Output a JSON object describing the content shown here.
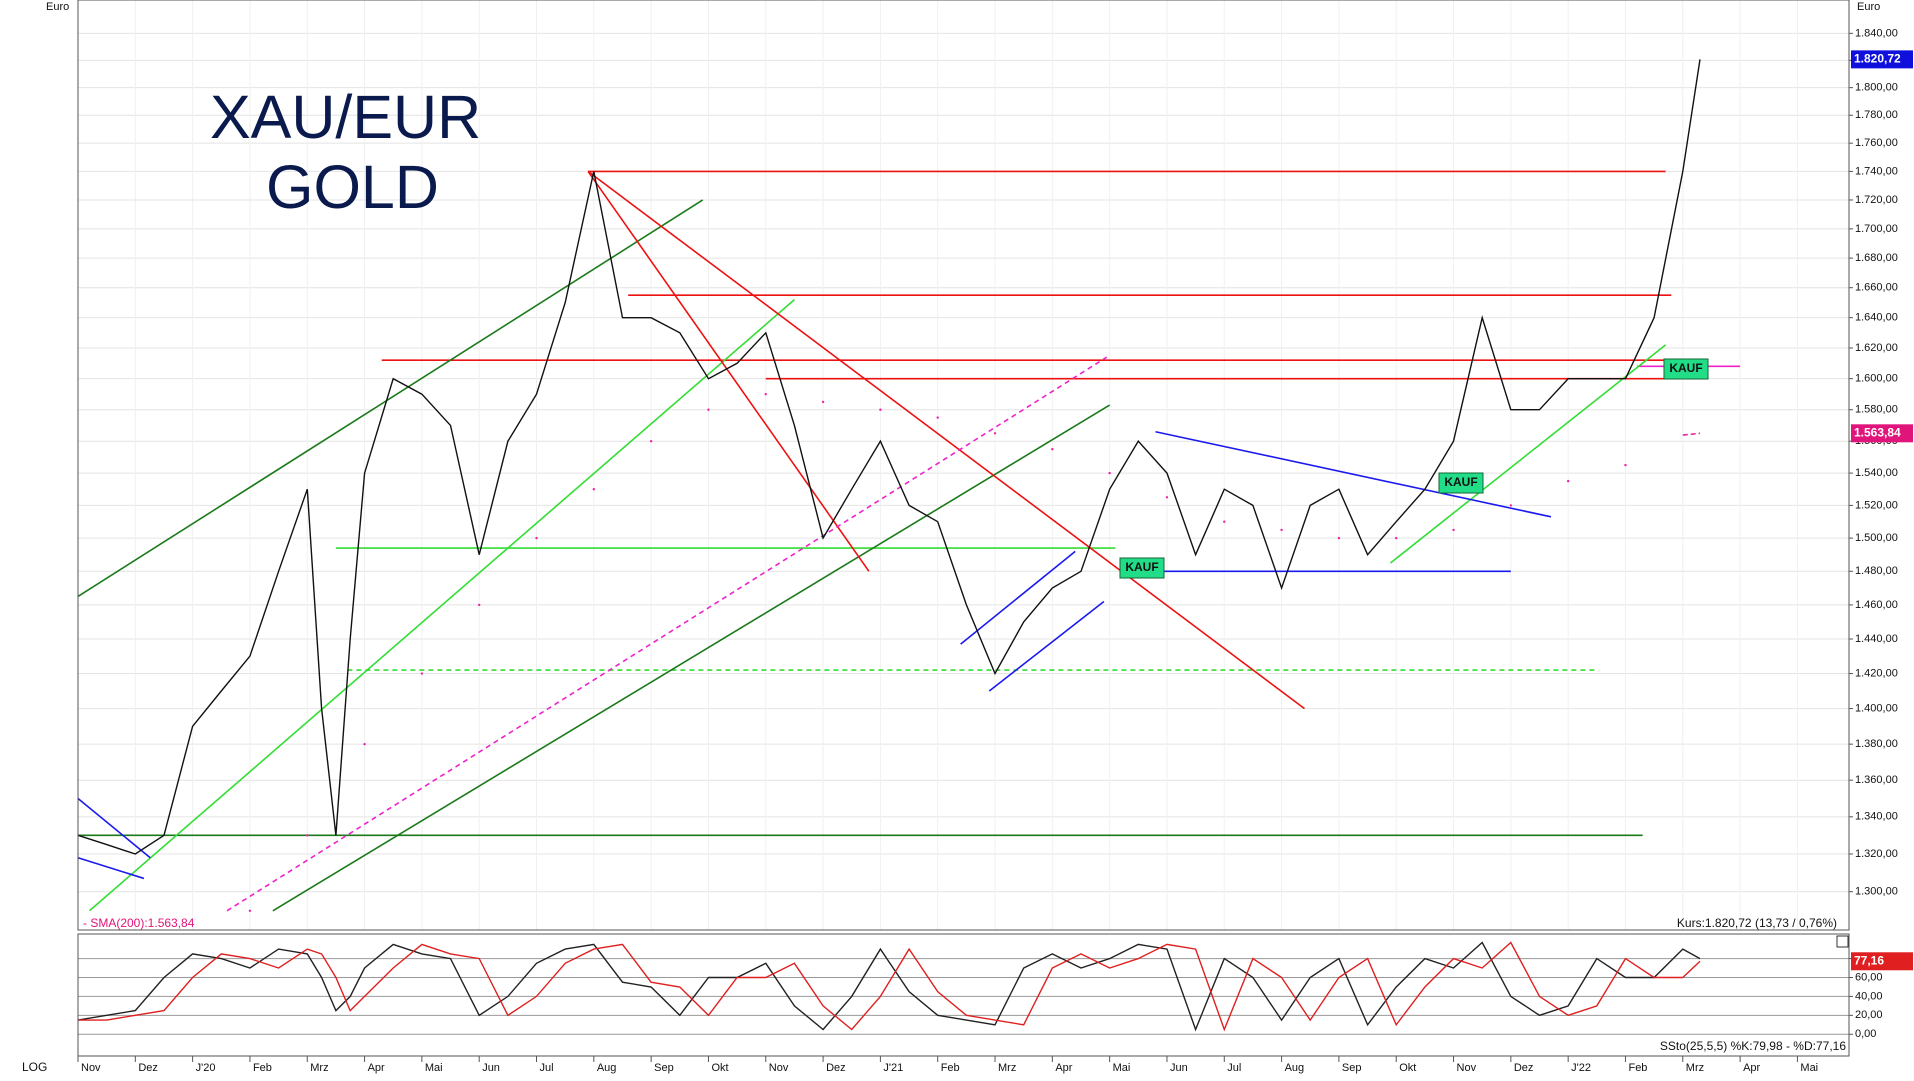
{
  "chart_data": [
    {
      "type": "line",
      "title": "XAU/EUR",
      "subtitle": "GOLD",
      "axis_unit": "Euro",
      "log_scale": true,
      "grid": true,
      "scale_label": "LOG",
      "x": [
        0,
        0.5,
        1,
        1.5,
        2,
        2.5,
        3,
        3.5,
        4,
        4.25,
        4.5,
        4.75,
        5,
        5.5,
        6,
        6.5,
        7,
        7.5,
        8,
        8.5,
        9,
        9.5,
        10,
        10.5,
        11,
        11.5,
        12,
        12.5,
        13,
        13.5,
        14,
        14.5,
        15,
        15.5,
        16,
        16.5,
        17,
        17.5,
        18,
        18.5,
        19,
        19.5,
        20,
        20.5,
        21,
        21.5,
        22,
        22.5,
        23,
        23.5,
        24,
        24.5,
        25,
        25.5,
        26,
        26.5,
        27,
        27.5,
        28,
        28.3
      ],
      "xlim": [
        0,
        30.9
      ],
      "xticks": [
        {
          "value": 0,
          "label": "Nov"
        },
        {
          "value": 1,
          "label": "Dez"
        },
        {
          "value": 2,
          "label": "J'20"
        },
        {
          "value": 3,
          "label": "Feb"
        },
        {
          "value": 4,
          "label": "Mrz"
        },
        {
          "value": 5,
          "label": "Apr"
        },
        {
          "value": 6,
          "label": "Mai"
        },
        {
          "value": 7,
          "label": "Jun"
        },
        {
          "value": 8,
          "label": "Jul"
        },
        {
          "value": 9,
          "label": "Aug"
        },
        {
          "value": 10,
          "label": "Sep"
        },
        {
          "value": 11,
          "label": "Okt"
        },
        {
          "value": 12,
          "label": "Nov"
        },
        {
          "value": 13,
          "label": "Dez"
        },
        {
          "value": 14,
          "label": "J'21"
        },
        {
          "value": 15,
          "label": "Feb"
        },
        {
          "value": 16,
          "label": "Mrz"
        },
        {
          "value": 17,
          "label": "Apr"
        },
        {
          "value": 18,
          "label": "Mai"
        },
        {
          "value": 19,
          "label": "Jun"
        },
        {
          "value": 20,
          "label": "Jul"
        },
        {
          "value": 21,
          "label": "Aug"
        },
        {
          "value": 22,
          "label": "Sep"
        },
        {
          "value": 23,
          "label": "Okt"
        },
        {
          "value": 24,
          "label": "Nov"
        },
        {
          "value": 25,
          "label": "Dez"
        },
        {
          "value": 26,
          "label": "J'22"
        },
        {
          "value": 27,
          "label": "Feb"
        },
        {
          "value": 28,
          "label": "Mrz"
        },
        {
          "value": 29,
          "label": "Apr"
        },
        {
          "value": 30,
          "label": "Mai"
        }
      ],
      "ylim": [
        1280,
        1865
      ],
      "yticks": [
        {
          "value": 1300,
          "label": "1.300,00"
        },
        {
          "value": 1320,
          "label": "1.320,00"
        },
        {
          "value": 1340,
          "label": "1.340,00"
        },
        {
          "value": 1360,
          "label": "1.360,00"
        },
        {
          "value": 1380,
          "label": "1.380,00"
        },
        {
          "value": 1400,
          "label": "1.400,00"
        },
        {
          "value": 1420,
          "label": "1.420,00"
        },
        {
          "value": 1440,
          "label": "1.440,00"
        },
        {
          "value": 1460,
          "label": "1.460,00"
        },
        {
          "value": 1480,
          "label": "1.480,00"
        },
        {
          "value": 1500,
          "label": "1.500,00"
        },
        {
          "value": 1520,
          "label": "1.520,00"
        },
        {
          "value": 1540,
          "label": "1.540,00"
        },
        {
          "value": 1560,
          "label": "1.560,00"
        },
        {
          "value": 1580,
          "label": "1.580,00"
        },
        {
          "value": 1600,
          "label": "1.600,00"
        },
        {
          "value": 1620,
          "label": "1.620,00"
        },
        {
          "value": 1640,
          "label": "1.640,00"
        },
        {
          "value": 1660,
          "label": "1.660,00"
        },
        {
          "value": 1680,
          "label": "1.680,00"
        },
        {
          "value": 1700,
          "label": "1.700,00"
        },
        {
          "value": 1720,
          "label": "1.720,00"
        },
        {
          "value": 1740,
          "label": "1.740,00"
        },
        {
          "value": 1760,
          "label": "1.760,00"
        },
        {
          "value": 1780,
          "label": "1.780,00"
        },
        {
          "value": 1800,
          "label": "1.800,00"
        },
        {
          "value": 1820,
          "label": "1.820,00"
        },
        {
          "value": 1840,
          "label": "1.840,00"
        }
      ],
      "series": [
        {
          "color": "#111111",
          "values": [
            1330,
            1325,
            1320,
            1330,
            1390,
            1410,
            1430,
            1480,
            1530,
            1400,
            1330,
            1440,
            1540,
            1600,
            1590,
            1570,
            1490,
            1560,
            1590,
            1650,
            1740,
            1640,
            1640,
            1630,
            1600,
            1610,
            1630,
            1570,
            1500,
            1530,
            1560,
            1520,
            1510,
            1460,
            1420,
            1450,
            1470,
            1480,
            1530,
            1560,
            1540,
            1490,
            1530,
            1520,
            1470,
            1520,
            1530,
            1490,
            1510,
            1530,
            1560,
            1640,
            1580,
            1580,
            1600,
            1600,
            1600,
            1640,
            1740,
            1820.72
          ],
          "last_label": "1.820,72",
          "label_color": "#1010dd"
        },
        {
          "color": "#ee22aa",
          "dashed": true,
          "values": [
            null,
            null,
            null,
            null,
            null,
            null,
            1290,
            null,
            1330,
            null,
            null,
            null,
            1380,
            null,
            1420,
            null,
            1460,
            null,
            1500,
            null,
            1530,
            null,
            1560,
            null,
            1580,
            null,
            1590,
            null,
            1585,
            null,
            1580,
            null,
            1575,
            null,
            1565,
            null,
            1555,
            null,
            1540,
            null,
            1525,
            null,
            1510,
            null,
            1505,
            null,
            1500,
            null,
            1500,
            null,
            1505,
            null,
            1520,
            null,
            1535,
            null,
            1545,
            null,
            1563.84,
            1565
          ],
          "last_label": "1.563,84",
          "label_color": "#e0147a",
          "legend_text": "- SMA(200):1.563,84"
        }
      ],
      "lines": [
        {
          "color": "#ee1111",
          "x": [
            8.9,
            27.7
          ],
          "y": [
            1740,
            1740
          ]
        },
        {
          "color": "#ee1111",
          "x": [
            9.6,
            27.8
          ],
          "y": [
            1655,
            1655
          ]
        },
        {
          "color": "#ee1111",
          "x": [
            5.3,
            27.8
          ],
          "y": [
            1612,
            1612
          ]
        },
        {
          "color": "#ee1111",
          "x": [
            12,
            27.8
          ],
          "y": [
            1600,
            1600
          ]
        },
        {
          "color": "#33dd33",
          "x": [
            4.5,
            18.1
          ],
          "y": [
            1494,
            1494
          ]
        },
        {
          "color": "#33dd33",
          "dashed": true,
          "x": [
            4.7,
            26.5
          ],
          "y": [
            1422,
            1422
          ]
        },
        {
          "color": "#1a7a1a",
          "x": [
            0,
            27.3
          ],
          "y": [
            1330,
            1330
          ]
        },
        {
          "color": "#1a1aee",
          "x": [
            18.4,
            25
          ],
          "y": [
            1480,
            1480
          ]
        },
        {
          "color": "#ee22cc",
          "x": [
            27.2,
            29
          ],
          "y": [
            1608,
            1608
          ]
        },
        {
          "color": "#1a7a1a",
          "x": [
            0,
            10.9
          ],
          "y": [
            1465,
            1720
          ]
        },
        {
          "color": "#1a7a1a",
          "x": [
            3.4,
            18
          ],
          "y": [
            1290,
            1583
          ]
        },
        {
          "color": "#33dd33",
          "x": [
            0.2,
            12.5
          ],
          "y": [
            1290,
            1652
          ]
        },
        {
          "color": "#33dd33",
          "x": [
            22.9,
            27.7
          ],
          "y": [
            1485,
            1622
          ]
        },
        {
          "color": "#ee1111",
          "x": [
            8.9,
            21.4
          ],
          "y": [
            1740,
            1400
          ]
        },
        {
          "color": "#ee1111",
          "x": [
            8.9,
            13.8
          ],
          "y": [
            1740,
            1480
          ]
        },
        {
          "color": "#1a1aee",
          "x": [
            18.8,
            25.7
          ],
          "y": [
            1566,
            1513
          ]
        },
        {
          "color": "#1a1aee",
          "x": [
            15.4,
            17.4
          ],
          "y": [
            1437,
            1492
          ]
        },
        {
          "color": "#1a1aee",
          "x": [
            15.9,
            17.9
          ],
          "y": [
            1410,
            1462
          ]
        },
        {
          "color": "#ee22cc",
          "dashed": true,
          "x": [
            2.6,
            17.95
          ],
          "y": [
            1290,
            1614
          ]
        },
        {
          "color": "#1a1aee",
          "x": [
            0,
            1.26
          ],
          "y": [
            1350,
            1318
          ]
        },
        {
          "color": "#1a1aee",
          "x": [
            0,
            1.15
          ],
          "y": [
            1318,
            1307
          ]
        }
      ],
      "annotations": [
        "KAUF",
        "KAUF",
        "KAUF"
      ],
      "quote": "Kurs:1.820,72 (13,73 / 0,76%)"
    },
    {
      "type": "line",
      "grid": true,
      "x": [
        0,
        0.5,
        1,
        1.5,
        2,
        2.5,
        3,
        3.5,
        4,
        4.25,
        4.5,
        4.75,
        5,
        5.5,
        6,
        6.5,
        7,
        7.5,
        8,
        8.5,
        9,
        9.5,
        10,
        10.5,
        11,
        11.5,
        12,
        12.5,
        13,
        13.5,
        14,
        14.5,
        15,
        15.5,
        16,
        16.5,
        17,
        17.5,
        18,
        18.5,
        19,
        19.5,
        20,
        20.5,
        21,
        21.5,
        22,
        22.5,
        23,
        23.5,
        24,
        24.5,
        25,
        25.5,
        26,
        26.5,
        27,
        27.5,
        28,
        28.3
      ],
      "xlim": [
        0,
        30.9
      ],
      "ylim": [
        -23,
        106
      ],
      "yticks": [
        {
          "value": 0,
          "label": "0,00"
        },
        {
          "value": 20,
          "label": "20,00"
        },
        {
          "value": 40,
          "label": "40,00"
        },
        {
          "value": 60,
          "label": "60,00"
        },
        {
          "value": 80,
          "label": "80,00"
        }
      ],
      "series": [
        {
          "color": "#222222",
          "values": [
            15,
            20,
            25,
            60,
            85,
            80,
            70,
            90,
            85,
            60,
            25,
            40,
            70,
            95,
            85,
            80,
            20,
            40,
            75,
            90,
            95,
            55,
            50,
            20,
            60,
            60,
            75,
            30,
            5,
            40,
            90,
            45,
            20,
            15,
            10,
            70,
            85,
            70,
            80,
            95,
            90,
            5,
            80,
            60,
            15,
            60,
            80,
            10,
            50,
            80,
            70,
            97,
            40,
            20,
            30,
            80,
            60,
            60,
            90,
            79.98
          ]
        },
        {
          "color": "#e02020",
          "values": [
            15,
            15,
            20,
            25,
            60,
            85,
            80,
            70,
            90,
            85,
            60,
            25,
            40,
            70,
            95,
            85,
            80,
            20,
            40,
            75,
            90,
            95,
            55,
            50,
            20,
            60,
            60,
            75,
            30,
            5,
            40,
            90,
            45,
            20,
            15,
            10,
            70,
            85,
            70,
            80,
            95,
            90,
            5,
            80,
            60,
            15,
            60,
            80,
            10,
            50,
            80,
            70,
            97,
            40,
            20,
            30,
            80,
            60,
            60,
            77.16
          ],
          "last_label": "77,16",
          "label_color": "#e02020"
        }
      ],
      "legend_text": "SSto(25,5,5) %K:79,98 - %D:77,16"
    }
  ]
}
